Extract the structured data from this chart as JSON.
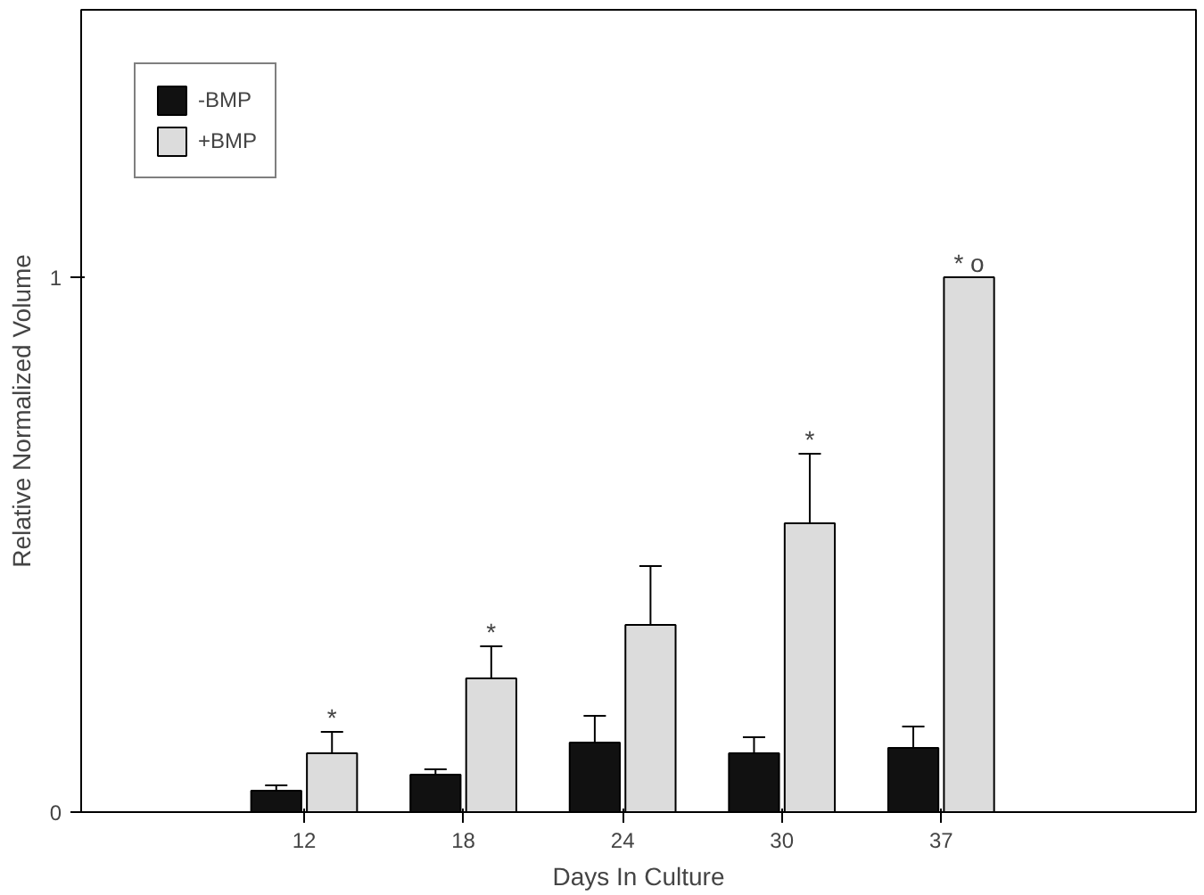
{
  "chart_data": {
    "type": "bar",
    "xlabel": "Days In Culture",
    "ylabel": "Relative Normalized Volume",
    "categories": [
      "12",
      "18",
      "24",
      "30",
      "37"
    ],
    "series": [
      {
        "name": "-BMP",
        "color": "#111111",
        "values": [
          0.04,
          0.07,
          0.13,
          0.11,
          0.12
        ],
        "errors": [
          [
            0.04,
            0.05
          ],
          [
            0.07,
            0.08
          ],
          [
            0.13,
            0.18
          ],
          [
            0.11,
            0.14
          ],
          [
            0.12,
            0.16
          ]
        ]
      },
      {
        "name": "+BMP",
        "color": "#dcdcdc",
        "values": [
          0.11,
          0.25,
          0.35,
          0.54,
          1.0
        ],
        "errors": [
          [
            0.11,
            0.15
          ],
          [
            0.25,
            0.31
          ],
          [
            0.35,
            0.46
          ],
          [
            0.54,
            0.67
          ],
          null
        ]
      }
    ],
    "ylim": [
      0,
      1.5
    ],
    "yticks": [
      0,
      1
    ],
    "grid": false,
    "legend": "top left",
    "annotations": [
      {
        "text": "*",
        "x": "12",
        "y": 0.11
      },
      {
        "text": "*",
        "x": "18",
        "y": 0.25
      },
      {
        "text": "*",
        "x": "30",
        "y": 0.54
      },
      {
        "text": "* o",
        "x": "37",
        "y": 1.0
      }
    ]
  }
}
